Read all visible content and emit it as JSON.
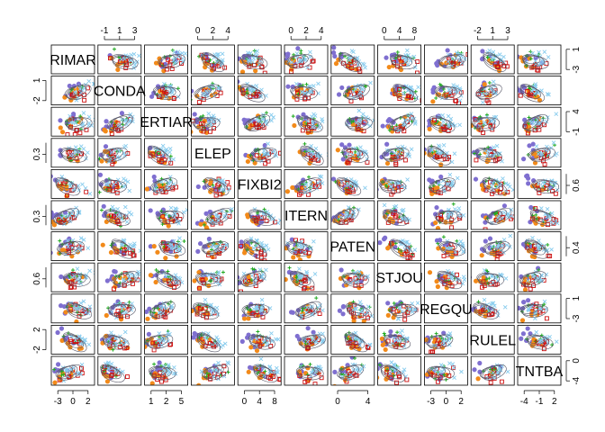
{
  "chart_data": {
    "type": "scatter",
    "plot_kind": "scatterplot-matrix",
    "variables": [
      "RIMAR",
      "CONDA",
      "ERTIAR",
      "ELEP",
      "FIXBI2",
      "ITERN",
      "PATEN",
      "STJOU",
      "REGQU",
      "RULEL",
      "TNTBA"
    ],
    "groups": [
      {
        "color": "#7f6fd0",
        "marker": "filled-circle"
      },
      {
        "color": "#f28a1a",
        "marker": "filled-circle"
      },
      {
        "color": "#22aa22",
        "marker": "plus"
      },
      {
        "color": "#cc1111",
        "marker": "open-square"
      },
      {
        "color": "#88ccee",
        "marker": "cross"
      }
    ],
    "ellipse_color": "#555566",
    "axes": {
      "top": [
        {
          "col": 1,
          "ticks": [
            "-1",
            "1",
            "3"
          ]
        },
        {
          "col": 3,
          "ticks": [
            "0",
            "2",
            "4"
          ]
        },
        {
          "col": 5,
          "ticks": [
            "0",
            "2",
            "4"
          ]
        },
        {
          "col": 7,
          "ticks": [
            "0",
            "4",
            "8"
          ]
        },
        {
          "col": 9,
          "ticks": [
            "-2",
            "1",
            "3"
          ]
        }
      ],
      "bottom": [
        {
          "col": 0,
          "ticks": [
            "-3",
            "0",
            "2"
          ]
        },
        {
          "col": 2,
          "ticks": [
            "1",
            "2",
            "5"
          ]
        },
        {
          "col": 4,
          "ticks": [
            "0",
            "4",
            "8"
          ]
        },
        {
          "col": 6,
          "ticks": [
            "0",
            "4"
          ]
        },
        {
          "col": 8,
          "ticks": [
            "-3",
            "0",
            "2"
          ]
        },
        {
          "col": 10,
          "ticks": [
            "-4",
            "-1",
            "2"
          ]
        }
      ],
      "left": [
        {
          "row": 1,
          "ticks": [
            "-2",
            "1"
          ]
        },
        {
          "row": 3,
          "ticks": [
            "0.3"
          ]
        },
        {
          "row": 5,
          "ticks": [
            "0.3"
          ]
        },
        {
          "row": 7,
          "ticks": [
            "0.6"
          ]
        },
        {
          "row": 9,
          "ticks": [
            "-2",
            "2"
          ]
        }
      ],
      "right": [
        {
          "row": 0,
          "ticks": [
            "-3",
            "1"
          ]
        },
        {
          "row": 2,
          "ticks": [
            "-1",
            "4"
          ]
        },
        {
          "row": 4,
          "ticks": [
            "0.6"
          ]
        },
        {
          "row": 6,
          "ticks": [
            "0.4"
          ]
        },
        {
          "row": 8,
          "ticks": [
            "-3",
            "1"
          ]
        },
        {
          "row": 10,
          "ticks": [
            "-4",
            "0"
          ]
        }
      ]
    }
  }
}
